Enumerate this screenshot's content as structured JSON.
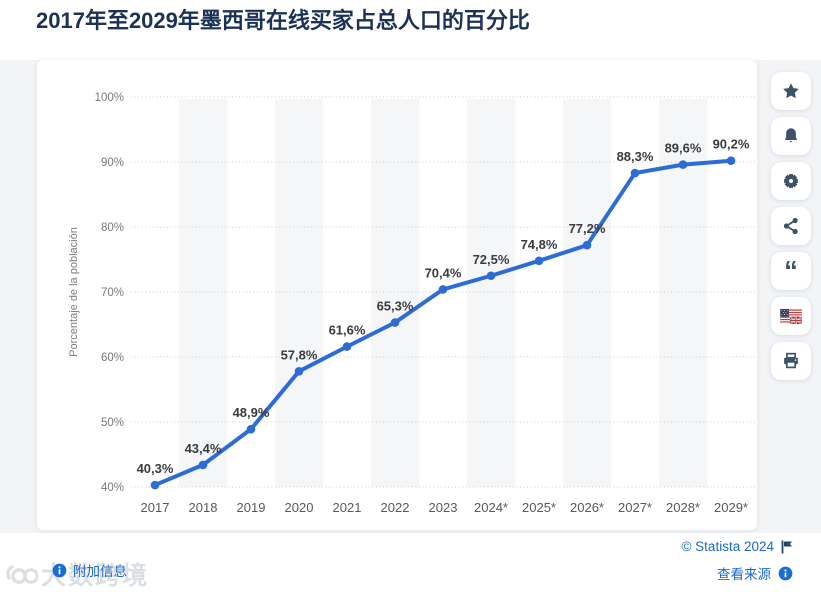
{
  "title": "2017年至2029年墨西哥在线买家占总人口的百分比",
  "chart_data": {
    "type": "line",
    "title": "2017年至2029年墨西哥在线买家占总人口的百分比",
    "ylabel": "Porcentaje de la población",
    "xlabel": "",
    "categories": [
      "2017",
      "2018",
      "2019",
      "2020",
      "2021",
      "2022",
      "2023",
      "2024*",
      "2025*",
      "2026*",
      "2027*",
      "2028*",
      "2029*"
    ],
    "values": [
      40.3,
      43.4,
      48.9,
      57.8,
      61.6,
      65.3,
      70.4,
      72.5,
      74.8,
      77.2,
      88.3,
      89.6,
      90.2
    ],
    "point_labels": [
      "40,3%",
      "43,4%",
      "48,9%",
      "57,8%",
      "61,6%",
      "65,3%",
      "70,4%",
      "72,5%",
      "74,8%",
      "77,2%",
      "88,3%",
      "89,6%",
      "90,2%"
    ],
    "ylim": [
      40,
      100
    ],
    "yticks": [
      40,
      50,
      60,
      70,
      80,
      90,
      100
    ],
    "ytick_labels": [
      "40%",
      "50%",
      "60%",
      "70%",
      "80%",
      "90%",
      "100%"
    ],
    "grid": "horizontal-dotted",
    "legend": "none",
    "line_color": "#2d6cd6",
    "band_color": "#f5f6f7",
    "grid_color": "#c9cbce",
    "ytick_color": "#77797c",
    "xtick_color": "#56585b",
    "data_label_color": "#3a3b3d",
    "ylabel_color": "#7b7d80"
  },
  "sidebar": {
    "buttons": [
      {
        "name": "favorite",
        "icon": "star-icon"
      },
      {
        "name": "alerts",
        "icon": "bell-icon"
      },
      {
        "name": "settings",
        "icon": "gear-icon"
      },
      {
        "name": "share",
        "icon": "share-icon"
      },
      {
        "name": "cite",
        "icon": "quote-icon"
      },
      {
        "name": "language",
        "icon": "language-flag-icon"
      },
      {
        "name": "print",
        "icon": "printer-icon"
      }
    ]
  },
  "footer": {
    "additional_info": "附加信息",
    "copyright": "© Statista 2024",
    "view_source": "查看来源"
  },
  "watermark": {
    "text": "大数跨境"
  },
  "colors": {
    "title_navy": "#1c3254",
    "link_blue": "#1b6ac9",
    "icon_slate": "#3d5268",
    "region_bg": "#f2f4f6"
  }
}
